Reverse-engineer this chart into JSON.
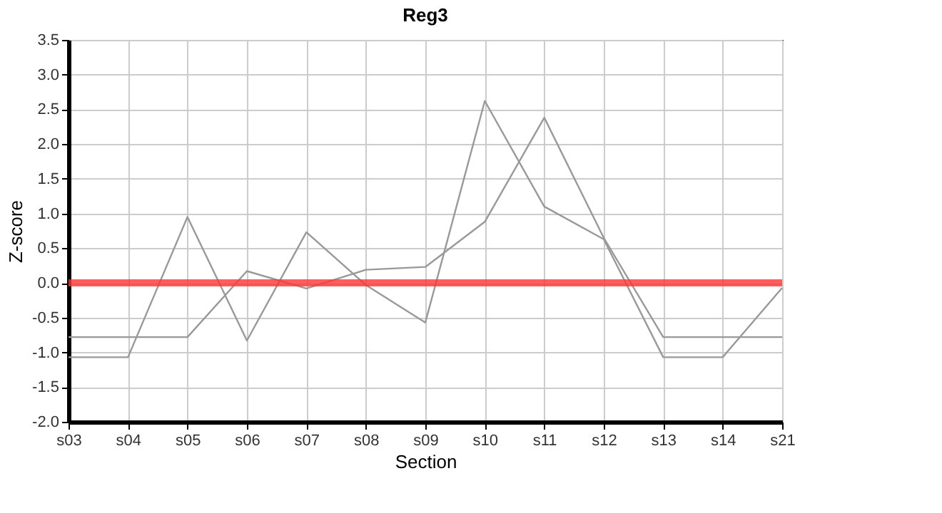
{
  "chart_data": {
    "type": "line",
    "title": "Reg3",
    "xlabel": "Section",
    "ylabel": "Z-score",
    "categories": [
      "s03",
      "s04",
      "s05",
      "s06",
      "s07",
      "s08",
      "s09",
      "s10",
      "s11",
      "s12",
      "s13",
      "s14",
      "s21"
    ],
    "series": [
      {
        "color": "#999999",
        "values": [
          -1.07,
          -1.07,
          0.95,
          -0.83,
          0.73,
          -0.03,
          -0.57,
          2.62,
          1.1,
          0.63,
          -1.07,
          -1.07,
          -0.07
        ]
      },
      {
        "color": "#999999",
        "values": [
          -0.78,
          -0.78,
          -0.78,
          0.17,
          -0.08,
          0.19,
          0.23,
          0.88,
          2.38,
          0.65,
          -0.78,
          -0.78,
          -0.78
        ]
      }
    ],
    "ylim": [
      -2.0,
      3.5
    ],
    "yticks": [
      {
        "value": -2,
        "label": "-2.0"
      },
      {
        "value": -1.5,
        "label": "-1.5"
      },
      {
        "value": -1,
        "label": "-1.0"
      },
      {
        "value": -0.5,
        "label": "-0.5"
      },
      {
        "value": 0,
        "label": "0.0"
      },
      {
        "value": 0.5,
        "label": "0.5"
      },
      {
        "value": 1,
        "label": "1.0"
      },
      {
        "value": 1.5,
        "label": "1.5"
      },
      {
        "value": 2,
        "label": "2.0"
      },
      {
        "value": 2.5,
        "label": "2.5"
      },
      {
        "value": 3,
        "label": "3.0"
      },
      {
        "value": 3.5,
        "label": "3.5"
      }
    ],
    "ref_lines": [
      {
        "axis": "y",
        "value": 0,
        "color": "#ff3333"
      }
    ],
    "grid": true,
    "legend": false,
    "marker": "none",
    "line_style": "solid"
  }
}
